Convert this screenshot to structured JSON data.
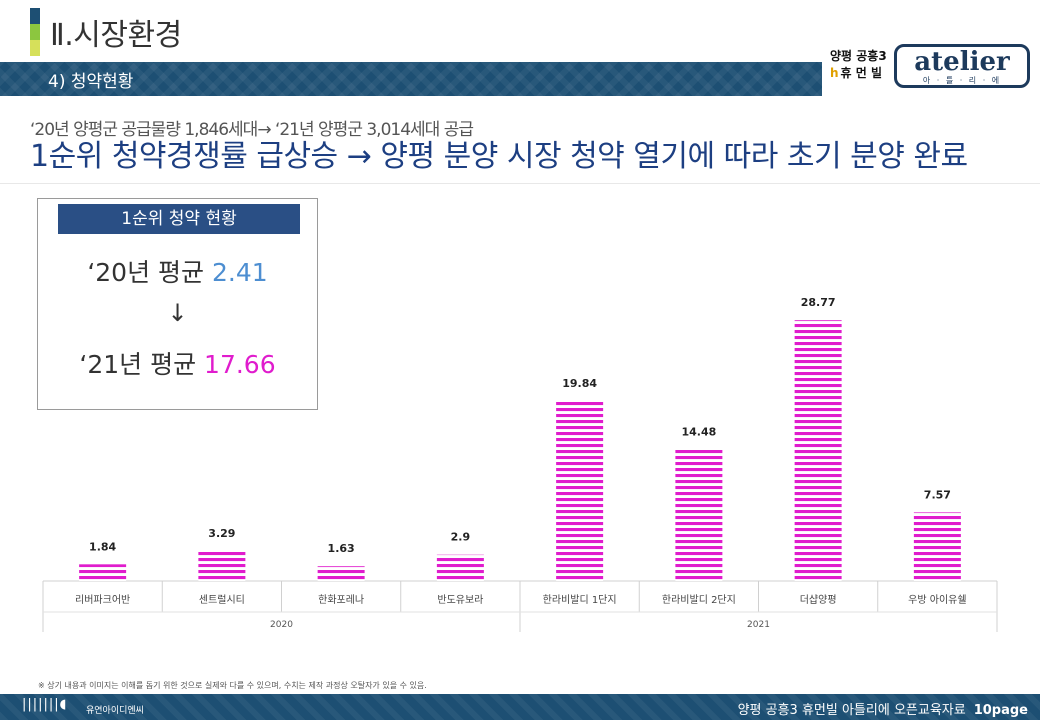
{
  "header": {
    "title": "Ⅱ.시장환경",
    "section": "4) 청약현황",
    "title_bar_colors": [
      "#1d4f73",
      "#8cc63f",
      "#d6e05a"
    ]
  },
  "brand": {
    "line1": "양평 공흥3",
    "line2_icon": "h",
    "line2": "휴 먼 빌",
    "logo_word": "atelier",
    "logo_sub": "아 · 틀 · 리 · 에"
  },
  "headline": {
    "sub": "‘20년 양평군 공급물량 1,846세대→ ‘21년 양평군 3,014세대 공급",
    "main": "1순위 청약경쟁률 급상승 → 양평 분양 시장 청약 열기에 따라 초기 분양 완료"
  },
  "info_box": {
    "heading": "1순위 청약 현황",
    "line1_label": "‘20년 평균",
    "line1_value": "2.41",
    "arrow": "↓",
    "line2_label": "‘21년 평균",
    "line2_value": "17.66"
  },
  "chart_data": {
    "type": "bar",
    "categories": [
      "리버파크어반",
      "센트럴시티",
      "한화포레나",
      "반도유보라",
      "한라비발디 1단지",
      "한라비발디 2단지",
      "더샵양평",
      "우방 아이유쉘"
    ],
    "values": [
      1.84,
      3.29,
      1.63,
      2.9,
      19.84,
      14.48,
      28.77,
      7.57
    ],
    "value_labels": [
      "1.84",
      "3.29",
      "1.63",
      "2.9",
      "19.84",
      "14.48",
      "28.77",
      "7.57"
    ],
    "groups": [
      {
        "label": "2020",
        "count": 4
      },
      {
        "label": "2021",
        "count": 4
      }
    ],
    "ylim": [
      0,
      31
    ],
    "bar_color": "#e01ccd",
    "grid": false
  },
  "footer": {
    "note": "※ 상기 내용과 이미지는 이해를 돕기 위한 것으로 실제와 다를 수 있으며, 수치는 제작 과정상 오탈자가 있을 수 있음.",
    "logo_glyph": "|||||||◖",
    "logo_text": "유연아이디엔씨",
    "doc_label": "양평 공흥3 휴먼빌 아틀리에  오픈교육자료",
    "page": "10page"
  }
}
